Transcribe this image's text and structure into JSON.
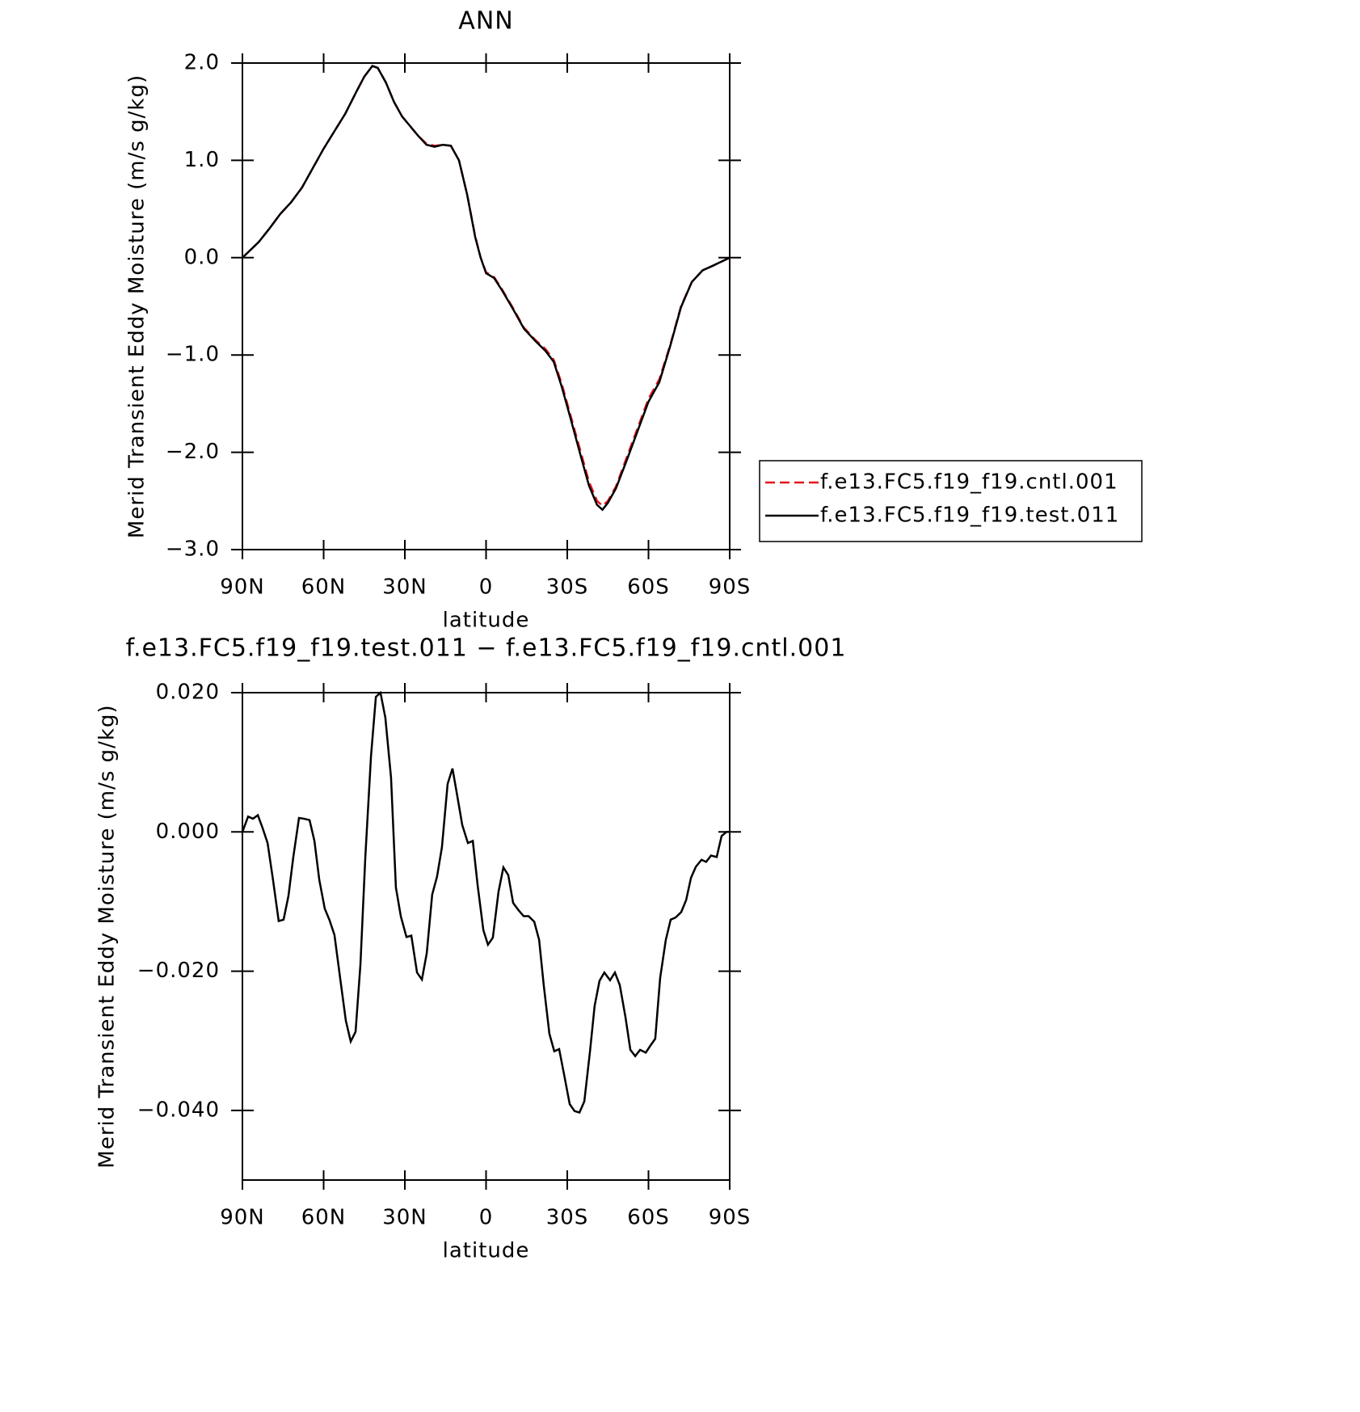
{
  "chart_data": [
    {
      "type": "line",
      "title": "ANN",
      "x_label": "latitude",
      "y_label": "Merid Transient Eddy Moisture (m/s g/kg)",
      "xlim": [
        90,
        -90
      ],
      "xticks": [
        {
          "value": 90,
          "label": "90N"
        },
        {
          "value": 60,
          "label": "60N"
        },
        {
          "value": 30,
          "label": "30N"
        },
        0,
        {
          "value": -30,
          "label": "30S"
        },
        {
          "value": -60,
          "label": "60S"
        },
        {
          "value": -90,
          "label": "90S"
        }
      ],
      "ylim": [
        -3,
        2
      ],
      "yticks": [
        {
          "value": 2,
          "label": "2.0"
        },
        {
          "value": 1,
          "label": "1.0"
        },
        {
          "value": 0,
          "label": "0.0"
        },
        {
          "value": -1,
          "label": "−1.0"
        },
        {
          "value": -2,
          "label": "−2.0"
        },
        {
          "value": -3,
          "label": "−3.0"
        }
      ],
      "legend": "right",
      "x": [
        90,
        87,
        84,
        80,
        76,
        72,
        68,
        64,
        60,
        56,
        52,
        48,
        45,
        42,
        40,
        37,
        34,
        31,
        28,
        25,
        22,
        19,
        16,
        13,
        10,
        7,
        4,
        2,
        0,
        -3,
        -6,
        -10,
        -14,
        -18,
        -22,
        -25,
        -28,
        -31,
        -35,
        -38,
        -41,
        -43,
        -45,
        -48,
        -52,
        -56,
        -60,
        -64,
        -68,
        -72,
        -76,
        -80,
        -84,
        -87,
        -90
      ],
      "series": [
        {
          "name": "f.e13.FC5.f19_f19.cntl.001",
          "color": "#e8141b",
          "dash": "dashed",
          "values": [
            0,
            0.08,
            0.16,
            0.3,
            0.45,
            0.57,
            0.72,
            0.92,
            1.12,
            1.3,
            1.48,
            1.7,
            1.86,
            1.97,
            1.95,
            1.8,
            1.6,
            1.45,
            1.35,
            1.25,
            1.17,
            1.15,
            1.16,
            1.15,
            1.0,
            0.65,
            0.22,
            0,
            -0.15,
            -0.2,
            -0.33,
            -0.52,
            -0.72,
            -0.84,
            -0.94,
            -1.05,
            -1.3,
            -1.6,
            -2.0,
            -2.3,
            -2.5,
            -2.55,
            -2.5,
            -2.35,
            -2.05,
            -1.75,
            -1.45,
            -1.25,
            -0.9,
            -0.5,
            -0.25,
            -0.13,
            -0.08,
            -0.04,
            0
          ]
        },
        {
          "name": "f.e13.FC5.f19_f19.test.011",
          "color": "#000000",
          "dash": "solid",
          "values": [
            0,
            0.08,
            0.16,
            0.3,
            0.45,
            0.57,
            0.72,
            0.92,
            1.12,
            1.3,
            1.48,
            1.7,
            1.86,
            1.97,
            1.95,
            1.8,
            1.6,
            1.45,
            1.35,
            1.25,
            1.16,
            1.14,
            1.16,
            1.15,
            1.0,
            0.65,
            0.21,
            0,
            -0.16,
            -0.21,
            -0.34,
            -0.53,
            -0.73,
            -0.85,
            -0.96,
            -1.07,
            -1.33,
            -1.63,
            -2.04,
            -2.34,
            -2.54,
            -2.59,
            -2.52,
            -2.37,
            -2.08,
            -1.78,
            -1.48,
            -1.28,
            -0.91,
            -0.51,
            -0.25,
            -0.13,
            -0.08,
            -0.04,
            0
          ]
        }
      ]
    },
    {
      "type": "line",
      "title": "f.e13.FC5.f19_f19.test.011 − f.e13.FC5.f19_f19.cntl.001",
      "x_label": "latitude",
      "y_label": "Merid Transient Eddy Moisture (m/s g/kg)",
      "xlim": [
        90,
        -90
      ],
      "xticks": [
        {
          "value": 90,
          "label": "90N"
        },
        {
          "value": 60,
          "label": "60N"
        },
        {
          "value": 30,
          "label": "30N"
        },
        0,
        {
          "value": -30,
          "label": "30S"
        },
        {
          "value": -60,
          "label": "60S"
        },
        {
          "value": -90,
          "label": "90S"
        }
      ],
      "ylim": [
        -0.05,
        0.02
      ],
      "yticks": [
        {
          "value": 0.02,
          "label": "0.020"
        },
        {
          "value": 0,
          "label": "0.000"
        },
        {
          "value": -0.02,
          "label": "−0.020"
        },
        {
          "value": -0.04,
          "label": "−0.040"
        }
      ],
      "x": [
        90,
        87.9,
        86.1,
        84.3,
        82.5,
        80.7,
        78.7,
        76.6,
        74.8,
        73,
        71.2,
        69.1,
        67.3,
        65.2,
        63.4,
        61.6,
        59.6,
        57.8,
        56,
        53.9,
        51.8,
        50,
        48.2,
        46.4,
        44.6,
        42.5,
        40.7,
        39,
        37.2,
        35.1,
        33.3,
        31.5,
        29.4,
        27.6,
        25.5,
        23.7,
        21.9,
        19.9,
        18.1,
        16.3,
        14.2,
        12.4,
        10.6,
        8.8,
        6.7,
        4.9,
        3.1,
        1,
        -0.7,
        -2.5,
        -4.6,
        -6.4,
        -8.2,
        -10,
        -12.1,
        -13.9,
        -15.7,
        -17.8,
        -19.6,
        -21.3,
        -23.4,
        -25.2,
        -27,
        -28.8,
        -30.9,
        -32.7,
        -34.5,
        -36.3,
        -38.4,
        -40.1,
        -41.9,
        -43.7,
        -45.8,
        -47.6,
        -49.4,
        -51.5,
        -53.3,
        -55.1,
        -56.9,
        -59,
        -60.7,
        -62.5,
        -64.3,
        -66.4,
        -68.2,
        -70,
        -72.1,
        -73.9,
        -75.7,
        -77.5,
        -79.6,
        -81.3,
        -83.1,
        -85.2,
        -87,
        -88.8,
        -90
      ],
      "series": [
        {
          "color": "#000000",
          "dash": "solid",
          "values": [
            0,
            0.0022,
            0.0019,
            0.0024,
            0.0005,
            -0.0016,
            -0.0069,
            -0.0128,
            -0.0126,
            -0.0092,
            -0.0036,
            0.002,
            0.0019,
            0.0017,
            -0.0013,
            -0.0069,
            -0.011,
            -0.0127,
            -0.0148,
            -0.021,
            -0.0271,
            -0.0301,
            -0.0287,
            -0.019,
            -0.0036,
            0.0109,
            0.0194,
            0.02,
            0.0164,
            0.0078,
            -0.008,
            -0.0121,
            -0.0151,
            -0.0149,
            -0.0202,
            -0.0212,
            -0.0174,
            -0.009,
            -0.0064,
            -0.0022,
            0.0069,
            0.0091,
            0.0051,
            0.001,
            -0.0016,
            -0.0013,
            -0.0077,
            -0.0141,
            -0.0162,
            -0.0152,
            -0.0086,
            -0.0051,
            -0.0062,
            -0.0102,
            -0.0113,
            -0.0121,
            -0.0121,
            -0.0129,
            -0.0155,
            -0.022,
            -0.029,
            -0.0315,
            -0.0312,
            -0.0348,
            -0.0391,
            -0.0401,
            -0.0403,
            -0.0387,
            -0.0315,
            -0.025,
            -0.0214,
            -0.0202,
            -0.0213,
            -0.0202,
            -0.022,
            -0.0266,
            -0.0313,
            -0.0322,
            -0.0313,
            -0.0317,
            -0.0307,
            -0.0297,
            -0.021,
            -0.0155,
            -0.0126,
            -0.0123,
            -0.0115,
            -0.0098,
            -0.0066,
            -0.005,
            -0.004,
            -0.0043,
            -0.0034,
            -0.0036,
            -0.0006,
            0,
            0
          ]
        }
      ]
    }
  ]
}
